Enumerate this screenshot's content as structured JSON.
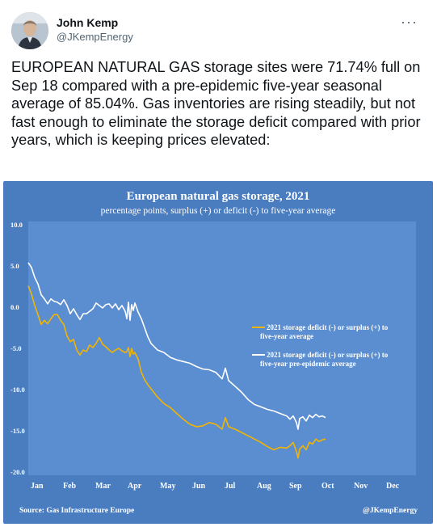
{
  "tweet": {
    "author_name": "John Kemp",
    "author_handle": "@JKempEnergy",
    "more_label": "···",
    "text": "EUROPEAN NATURAL GAS storage sites were 71.74% full on Sep 18 compared with a pre-epidemic five-year seasonal average of 85.04%. Gas inventories are rising steadily, but not fast enough to eliminate the storage deficit compared with prior years, which is keeping prices elevated:"
  },
  "colors": {
    "chart_background": "#4a7dc0",
    "plot_background": "#5a8ed0",
    "gold_series": "#f3b400",
    "white_series": "#ffffff"
  },
  "chart_data": {
    "type": "line",
    "title": "European natural gas storage, 2021",
    "subtitle": "percentage points, surplus (+) or deficit (-) to five-year average",
    "xlabel": "",
    "ylabel": "",
    "x_tick_labels": [
      "Jan",
      "Feb",
      "Mar",
      "Apr",
      "May",
      "Jun",
      "Jul",
      "Aug",
      "Sep",
      "Oct",
      "Nov",
      "Dec"
    ],
    "y_tick_labels": [
      "10.0",
      "5.0",
      "0.0",
      "-5.0",
      "-10.0",
      "-15.0",
      "-20.0"
    ],
    "ylim": [
      -20,
      10
    ],
    "x_unit": "month of year (1 = Jan 1)",
    "legend_position": "right",
    "grid": false,
    "source": "Source: Gas Infrastructure Europe",
    "credit": "@JKempEnergy",
    "series": [
      {
        "name": "2021 storage deficit (-) or surplus (+) to five-year average",
        "color": "#f3b400",
        "points": [
          [
            1.0,
            2.6
          ],
          [
            1.1,
            1.6
          ],
          [
            1.2,
            0.2
          ],
          [
            1.3,
            -0.9
          ],
          [
            1.4,
            -2.1
          ],
          [
            1.5,
            -1.6
          ],
          [
            1.6,
            -2.0
          ],
          [
            1.7,
            -1.4
          ],
          [
            1.8,
            -0.9
          ],
          [
            1.9,
            -0.9
          ],
          [
            2.0,
            -1.6
          ],
          [
            2.1,
            -2.1
          ],
          [
            2.2,
            -3.5
          ],
          [
            2.3,
            -4.2
          ],
          [
            2.4,
            -3.9
          ],
          [
            2.5,
            -5.2
          ],
          [
            2.6,
            -5.8
          ],
          [
            2.7,
            -5.2
          ],
          [
            2.8,
            -5.4
          ],
          [
            2.9,
            -4.6
          ],
          [
            3.0,
            -4.9
          ],
          [
            3.1,
            -4.4
          ],
          [
            3.2,
            -3.7
          ],
          [
            3.3,
            -4.5
          ],
          [
            3.4,
            -4.8
          ],
          [
            3.5,
            -5.2
          ],
          [
            3.6,
            -5.5
          ],
          [
            3.7,
            -5.2
          ],
          [
            3.8,
            -5.0
          ],
          [
            3.9,
            -5.3
          ],
          [
            4.0,
            -5.5
          ],
          [
            4.05,
            -5.4
          ],
          [
            4.1,
            -4.9
          ],
          [
            4.15,
            -6.0
          ],
          [
            4.2,
            -5.0
          ],
          [
            4.25,
            -5.7
          ],
          [
            4.3,
            -5.5
          ],
          [
            4.4,
            -6.3
          ],
          [
            4.5,
            -7.9
          ],
          [
            4.6,
            -8.8
          ],
          [
            4.7,
            -9.4
          ],
          [
            4.8,
            -9.9
          ],
          [
            5.0,
            -10.9
          ],
          [
            5.2,
            -11.7
          ],
          [
            5.4,
            -12.2
          ],
          [
            5.6,
            -12.9
          ],
          [
            5.8,
            -13.6
          ],
          [
            6.0,
            -14.2
          ],
          [
            6.2,
            -14.5
          ],
          [
            6.4,
            -14.4
          ],
          [
            6.6,
            -14.0
          ],
          [
            6.8,
            -14.2
          ],
          [
            7.0,
            -14.8
          ],
          [
            7.1,
            -13.4
          ],
          [
            7.2,
            -14.5
          ],
          [
            7.4,
            -14.8
          ],
          [
            7.6,
            -15.2
          ],
          [
            7.8,
            -15.6
          ],
          [
            8.0,
            -16.0
          ],
          [
            8.2,
            -16.4
          ],
          [
            8.4,
            -16.9
          ],
          [
            8.6,
            -17.3
          ],
          [
            8.8,
            -17.0
          ],
          [
            9.0,
            -17.1
          ],
          [
            9.1,
            -16.8
          ],
          [
            9.2,
            -16.4
          ],
          [
            9.3,
            -17.5
          ],
          [
            9.35,
            -18.3
          ],
          [
            9.4,
            -17.2
          ],
          [
            9.5,
            -16.8
          ],
          [
            9.6,
            -17.3
          ],
          [
            9.7,
            -16.4
          ],
          [
            9.8,
            -16.6
          ],
          [
            9.9,
            -16.0
          ],
          [
            10.0,
            -16.3
          ],
          [
            10.1,
            -16.1
          ],
          [
            10.2,
            -16.0
          ]
        ]
      },
      {
        "name": "2021 storage deficit (-) or surplus (+) to five-year pre-epidemic average",
        "color": "#ffffff",
        "points": [
          [
            1.0,
            5.4
          ],
          [
            1.1,
            4.8
          ],
          [
            1.2,
            3.6
          ],
          [
            1.3,
            2.8
          ],
          [
            1.4,
            1.5
          ],
          [
            1.5,
            1.0
          ],
          [
            1.6,
            0.4
          ],
          [
            1.7,
            1.0
          ],
          [
            1.8,
            0.7
          ],
          [
            1.9,
            0.6
          ],
          [
            2.0,
            0.3
          ],
          [
            2.1,
            0.9
          ],
          [
            2.2,
            0.2
          ],
          [
            2.3,
            -0.8
          ],
          [
            2.4,
            -0.2
          ],
          [
            2.5,
            -0.9
          ],
          [
            2.6,
            -1.5
          ],
          [
            2.7,
            -0.8
          ],
          [
            2.8,
            -0.8
          ],
          [
            2.9,
            -0.5
          ],
          [
            3.0,
            -0.2
          ],
          [
            3.1,
            0.5
          ],
          [
            3.2,
            0.2
          ],
          [
            3.3,
            -0.1
          ],
          [
            3.4,
            0.3
          ],
          [
            3.5,
            0.4
          ],
          [
            3.6,
            -0.1
          ],
          [
            3.7,
            0.4
          ],
          [
            3.8,
            -0.3
          ],
          [
            3.9,
            0.2
          ],
          [
            4.0,
            -0.5
          ],
          [
            4.05,
            -1.4
          ],
          [
            4.1,
            0.6
          ],
          [
            4.15,
            -1.6
          ],
          [
            4.2,
            0.3
          ],
          [
            4.25,
            -0.4
          ],
          [
            4.3,
            0.5
          ],
          [
            4.4,
            -0.6
          ],
          [
            4.5,
            -1.4
          ],
          [
            4.6,
            -2.5
          ],
          [
            4.7,
            -3.6
          ],
          [
            4.8,
            -4.4
          ],
          [
            5.0,
            -5.2
          ],
          [
            5.2,
            -5.5
          ],
          [
            5.4,
            -6.1
          ],
          [
            5.6,
            -6.4
          ],
          [
            5.8,
            -6.6
          ],
          [
            6.0,
            -6.8
          ],
          [
            6.2,
            -7.2
          ],
          [
            6.4,
            -7.5
          ],
          [
            6.6,
            -7.6
          ],
          [
            6.8,
            -7.9
          ],
          [
            7.0,
            -8.7
          ],
          [
            7.1,
            -7.4
          ],
          [
            7.2,
            -8.9
          ],
          [
            7.4,
            -9.6
          ],
          [
            7.6,
            -10.3
          ],
          [
            7.8,
            -11.2
          ],
          [
            8.0,
            -11.8
          ],
          [
            8.2,
            -12.1
          ],
          [
            8.4,
            -12.4
          ],
          [
            8.6,
            -12.6
          ],
          [
            8.8,
            -12.9
          ],
          [
            9.0,
            -13.2
          ],
          [
            9.1,
            -13.6
          ],
          [
            9.2,
            -13.2
          ],
          [
            9.3,
            -14.0
          ],
          [
            9.35,
            -14.8
          ],
          [
            9.4,
            -13.5
          ],
          [
            9.5,
            -13.3
          ],
          [
            9.6,
            -13.8
          ],
          [
            9.7,
            -13.1
          ],
          [
            9.8,
            -13.4
          ],
          [
            9.9,
            -13.0
          ],
          [
            10.0,
            -13.3
          ],
          [
            10.1,
            -13.2
          ],
          [
            10.2,
            -13.4
          ]
        ]
      }
    ]
  }
}
